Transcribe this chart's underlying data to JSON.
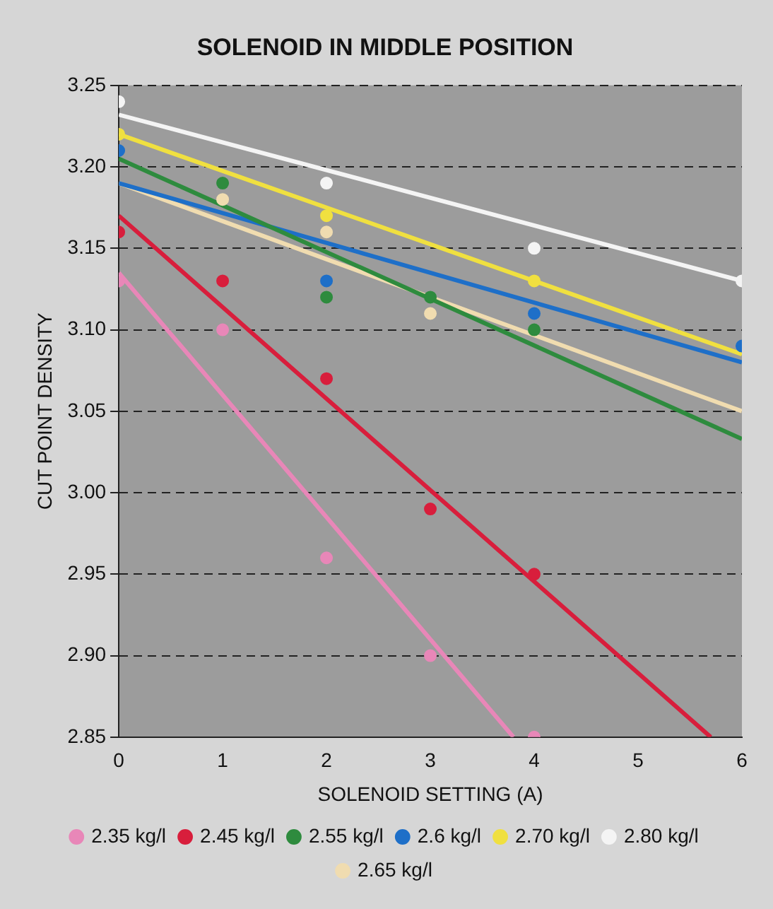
{
  "chart_data": {
    "type": "scatter",
    "title": "SOLENOID IN MIDDLE POSITION",
    "xlabel": "SOLENOID SETTING (A)",
    "ylabel": "CUT POINT DENSITY",
    "xlim": [
      0,
      6
    ],
    "xticks": [
      0,
      1,
      2,
      3,
      4,
      5,
      6
    ],
    "ylim": [
      2.85,
      3.25
    ],
    "yticks": [
      {
        "value": 2.85,
        "label": "2.85"
      },
      {
        "value": 2.9,
        "label": "2.90"
      },
      {
        "value": 2.95,
        "label": "2.95"
      },
      {
        "value": 3,
        "label": "3.00"
      },
      {
        "value": 3.05,
        "label": "3.05"
      },
      {
        "value": 3.1,
        "label": "3.10"
      },
      {
        "value": 3.15,
        "label": "3.15"
      },
      {
        "value": 3.2,
        "label": "3.20"
      },
      {
        "value": 3.25,
        "label": "3.25"
      }
    ],
    "grid": "y",
    "legend": "bottom",
    "marker": "circle",
    "series": [
      {
        "name": "2.35 kg/l",
        "color": "#e887b8",
        "x": [
          0,
          1,
          2,
          3,
          4
        ],
        "values": [
          3.13,
          3.1,
          2.96,
          2.9,
          2.85
        ]
      },
      {
        "name": "2.45 kg/l",
        "color": "#d81e3c",
        "x": [
          0,
          1,
          2,
          3,
          4
        ],
        "values": [
          3.16,
          3.13,
          3.07,
          2.99,
          2.95
        ]
      },
      {
        "name": "2.55 kg/l",
        "color": "#2e8b3e",
        "x": [
          1,
          2,
          3,
          4
        ],
        "values": [
          3.19,
          3.12,
          3.12,
          3.1
        ]
      },
      {
        "name": "2.6 kg/l",
        "color": "#1e6fc8",
        "x": [
          0,
          2,
          4,
          6
        ],
        "values": [
          3.21,
          3.13,
          3.11,
          3.09
        ]
      },
      {
        "name": "2.70 kg/l",
        "color": "#f0e040",
        "x": [
          0,
          2,
          4
        ],
        "values": [
          3.22,
          3.17,
          3.13
        ]
      },
      {
        "name": "2.80 kg/l",
        "color": "#f4f4f4",
        "x": [
          0,
          2,
          4,
          6
        ],
        "values": [
          3.24,
          3.19,
          3.15,
          3.13
        ]
      },
      {
        "name": "2.65 kg/l",
        "color": "#f0dcb0",
        "x": [
          1,
          2,
          3
        ],
        "values": [
          3.18,
          3.16,
          3.11
        ]
      },
      {
        "type": "line",
        "color": "#e887b8",
        "x": [
          0,
          3.8
        ],
        "values": [
          3.135,
          2.85
        ],
        "marker": "none",
        "line_style": "solid"
      },
      {
        "type": "line",
        "color": "#d81e3c",
        "x": [
          0,
          5.7
        ],
        "values": [
          3.17,
          2.85
        ],
        "marker": "none",
        "line_style": "solid"
      },
      {
        "type": "line",
        "color": "#2e8b3e",
        "x": [
          0,
          6
        ],
        "values": [
          3.205,
          3.033
        ],
        "marker": "none",
        "line_style": "solid"
      },
      {
        "type": "line",
        "color": "#1e6fc8",
        "x": [
          0,
          6
        ],
        "values": [
          3.19,
          3.08
        ],
        "marker": "none",
        "line_style": "solid"
      },
      {
        "type": "line",
        "color": "#f0e040",
        "x": [
          0,
          6
        ],
        "values": [
          3.22,
          3.085
        ],
        "marker": "none",
        "line_style": "solid"
      },
      {
        "type": "line",
        "color": "#f4f4f4",
        "x": [
          0,
          6
        ],
        "values": [
          3.232,
          3.13
        ],
        "marker": "none",
        "line_style": "solid"
      },
      {
        "type": "line",
        "color": "#f0dcb0",
        "x": [
          0,
          6
        ],
        "values": [
          3.19,
          3.05
        ],
        "marker": "none",
        "line_style": "solid"
      }
    ]
  }
}
